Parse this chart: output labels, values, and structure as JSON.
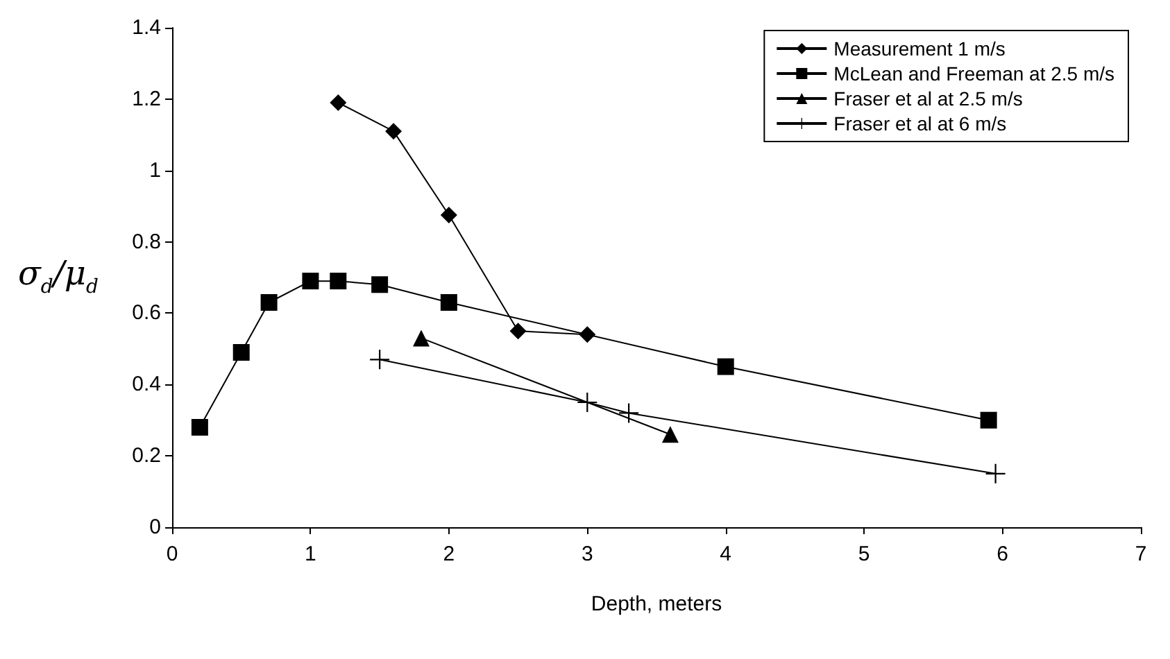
{
  "chart_data": {
    "type": "line",
    "xlabel": "Depth, meters",
    "ylabel": "σ$_{d}$/μ$_{d}$",
    "xlim": [
      0,
      7
    ],
    "xticks": [
      0,
      1,
      2,
      3,
      4,
      5,
      6,
      7
    ],
    "ylim": [
      0,
      1.4
    ],
    "yticks": [
      0,
      0.2,
      0.4,
      0.6,
      0.8,
      1,
      1.2,
      1.4
    ],
    "grid": false,
    "legend": "top right",
    "line_style": "solid",
    "series": [
      {
        "name": "Measurement 1 m/s",
        "color": "#000000",
        "marker": "diamond",
        "x": [
          1.2,
          1.6,
          2.0,
          2.5,
          3.0
        ],
        "values": [
          1.19,
          1.11,
          0.875,
          0.55,
          0.54
        ]
      },
      {
        "name": "McLean and Freeman at 2.5 m/s",
        "color": "#000000",
        "marker": "square",
        "x": [
          0.2,
          0.5,
          0.7,
          1.0,
          1.2,
          1.5,
          2.0,
          4.0,
          5.9
        ],
        "values": [
          0.28,
          0.49,
          0.63,
          0.69,
          0.69,
          0.68,
          0.63,
          0.45,
          0.3
        ]
      },
      {
        "name": "Fraser et al at 2.5 m/s",
        "color": "#000000",
        "marker": "triangle",
        "x": [
          1.8,
          3.6
        ],
        "values": [
          0.53,
          0.26
        ]
      },
      {
        "name": "Fraser et al at 6 m/s",
        "color": "#000000",
        "marker": "cross",
        "x": [
          1.5,
          3.0,
          3.3,
          5.95
        ],
        "values": [
          0.47,
          0.35,
          0.32,
          0.15
        ]
      }
    ]
  }
}
